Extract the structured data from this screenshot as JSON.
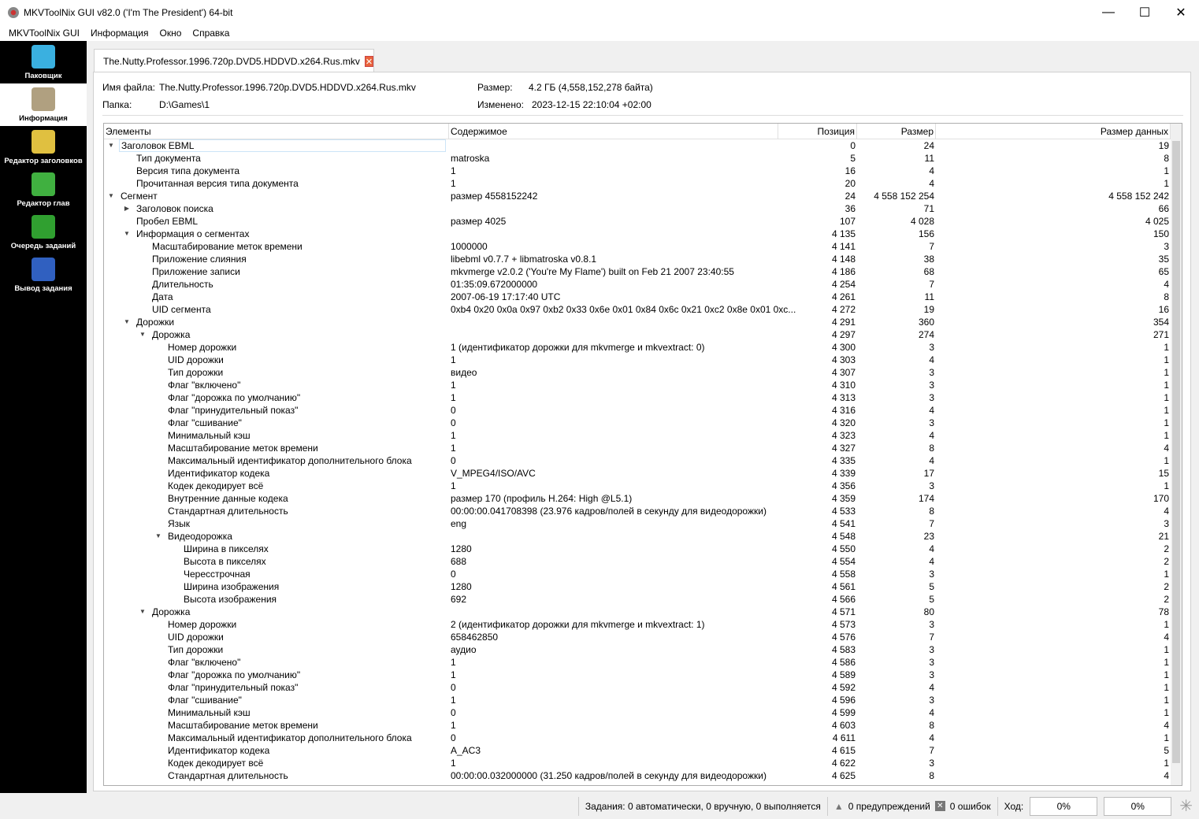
{
  "window": {
    "title": "MKVToolNix GUI v82.0 ('I'm The President') 64-bit",
    "minimize": "—",
    "maximize": "☐",
    "close": "✕"
  },
  "menu": [
    "MKVToolNix GUI",
    "Информация",
    "Окно",
    "Справка"
  ],
  "sidebar": [
    {
      "label": "Паковщик",
      "icon": "merge-icon",
      "color": "#3ab0e0"
    },
    {
      "label": "Информация",
      "icon": "magnifier-icon",
      "color": "#b0a080",
      "selected": true
    },
    {
      "label": "Редактор заголовков",
      "icon": "header-editor-icon",
      "color": "#e0c040"
    },
    {
      "label": "Редактор глав",
      "icon": "chapter-editor-icon",
      "color": "#40b040"
    },
    {
      "label": "Очередь заданий",
      "icon": "job-queue-icon",
      "color": "#30a030"
    },
    {
      "label": "Вывод задания",
      "icon": "job-output-icon",
      "color": "#3060c0"
    }
  ],
  "tab": {
    "label": "The.Nutty.Professor.1996.720p.DVD5.HDDVD.x264.Rus.mkv",
    "close": "✕"
  },
  "info": {
    "file_label": "Имя файла:",
    "file": "The.Nutty.Professor.1996.720p.DVD5.HDDVD.x264.Rus.mkv",
    "folder_label": "Папка:",
    "folder": "D:\\Games\\1",
    "size_label": "Размер:",
    "size": "4.2 ГБ (4,558,152,278 байта)",
    "modified_label": "Изменено:",
    "modified": "2023-12-15 22:10:04 +02:00"
  },
  "columns": [
    "Элементы",
    "Содержимое",
    "Позиция",
    "Размер",
    "Размер данных"
  ],
  "rows": [
    [
      0,
      "open",
      "Заголовок EBML",
      "",
      "0",
      "24",
      "19"
    ],
    [
      1,
      "",
      "Тип документа",
      "matroska",
      "5",
      "11",
      "8"
    ],
    [
      1,
      "",
      "Версия типа документа",
      "1",
      "16",
      "4",
      "1"
    ],
    [
      1,
      "",
      "Прочитанная версия типа документа",
      "1",
      "20",
      "4",
      "1"
    ],
    [
      0,
      "open",
      "Сегмент",
      "размер 4558152242",
      "24",
      "4 558 152 254",
      "4 558 152 242"
    ],
    [
      1,
      "closed",
      "Заголовок поиска",
      "",
      "36",
      "71",
      "66"
    ],
    [
      1,
      "",
      "Пробел EBML",
      "размер 4025",
      "107",
      "4 028",
      "4 025"
    ],
    [
      1,
      "open",
      "Информация о сегментах",
      "",
      "4 135",
      "156",
      "150"
    ],
    [
      2,
      "",
      "Масштабирование меток времени",
      "1000000",
      "4 141",
      "7",
      "3"
    ],
    [
      2,
      "",
      "Приложение слияния",
      "libebml v0.7.7 + libmatroska v0.8.1",
      "4 148",
      "38",
      "35"
    ],
    [
      2,
      "",
      "Приложение записи",
      "mkvmerge v2.0.2 ('You're My Flame') built on Feb 21 2007 23:40:55",
      "4 186",
      "68",
      "65"
    ],
    [
      2,
      "",
      "Длительность",
      "01:35:09.672000000",
      "4 254",
      "7",
      "4"
    ],
    [
      2,
      "",
      "Дата",
      "2007-06-19 17:17:40 UTC",
      "4 261",
      "11",
      "8"
    ],
    [
      2,
      "",
      "UID сегмента",
      "0xb4 0x20 0x0a 0x97 0xb2 0x33 0x6e 0x01 0x84 0x6c 0x21 0xc2 0x8e 0x01 0xc...",
      "4 272",
      "19",
      "16"
    ],
    [
      1,
      "open",
      "Дорожки",
      "",
      "4 291",
      "360",
      "354"
    ],
    [
      2,
      "open",
      "Дорожка",
      "",
      "4 297",
      "274",
      "271"
    ],
    [
      3,
      "",
      "Номер дорожки",
      "1 (идентификатор дорожки для mkvmerge и mkvextract: 0)",
      "4 300",
      "3",
      "1"
    ],
    [
      3,
      "",
      "UID дорожки",
      "1",
      "4 303",
      "4",
      "1"
    ],
    [
      3,
      "",
      "Тип дорожки",
      "видео",
      "4 307",
      "3",
      "1"
    ],
    [
      3,
      "",
      "Флаг \"включено\"",
      "1",
      "4 310",
      "3",
      "1"
    ],
    [
      3,
      "",
      "Флаг \"дорожка по умолчанию\"",
      "1",
      "4 313",
      "3",
      "1"
    ],
    [
      3,
      "",
      "Флаг \"принудительный показ\"",
      "0",
      "4 316",
      "4",
      "1"
    ],
    [
      3,
      "",
      "Флаг \"сшивание\"",
      "0",
      "4 320",
      "3",
      "1"
    ],
    [
      3,
      "",
      "Минимальный кэш",
      "1",
      "4 323",
      "4",
      "1"
    ],
    [
      3,
      "",
      "Масштабирование меток времени",
      "1",
      "4 327",
      "8",
      "4"
    ],
    [
      3,
      "",
      "Максимальный идентификатор дополнительного блока",
      "0",
      "4 335",
      "4",
      "1"
    ],
    [
      3,
      "",
      "Идентификатор кодека",
      "V_MPEG4/ISO/AVC",
      "4 339",
      "17",
      "15"
    ],
    [
      3,
      "",
      "Кодек декодирует всё",
      "1",
      "4 356",
      "3",
      "1"
    ],
    [
      3,
      "",
      "Внутренние данные кодека",
      "размер 170 (профиль H.264: High @L5.1)",
      "4 359",
      "174",
      "170"
    ],
    [
      3,
      "",
      "Стандартная длительность",
      "00:00:00.041708398 (23.976 кадров/полей в секунду для видеодорожки)",
      "4 533",
      "8",
      "4"
    ],
    [
      3,
      "",
      "Язык",
      "eng",
      "4 541",
      "7",
      "3"
    ],
    [
      3,
      "open",
      "Видеодорожка",
      "",
      "4 548",
      "23",
      "21"
    ],
    [
      4,
      "",
      "Ширина в пикселях",
      "1280",
      "4 550",
      "4",
      "2"
    ],
    [
      4,
      "",
      "Высота в пикселях",
      "688",
      "4 554",
      "4",
      "2"
    ],
    [
      4,
      "",
      "Чересстрочная",
      "0",
      "4 558",
      "3",
      "1"
    ],
    [
      4,
      "",
      "Ширина изображения",
      "1280",
      "4 561",
      "5",
      "2"
    ],
    [
      4,
      "",
      "Высота изображения",
      "692",
      "4 566",
      "5",
      "2"
    ],
    [
      2,
      "open",
      "Дорожка",
      "",
      "4 571",
      "80",
      "78"
    ],
    [
      3,
      "",
      "Номер дорожки",
      "2 (идентификатор дорожки для mkvmerge и mkvextract: 1)",
      "4 573",
      "3",
      "1"
    ],
    [
      3,
      "",
      "UID дорожки",
      "658462850",
      "4 576",
      "7",
      "4"
    ],
    [
      3,
      "",
      "Тип дорожки",
      "аудио",
      "4 583",
      "3",
      "1"
    ],
    [
      3,
      "",
      "Флаг \"включено\"",
      "1",
      "4 586",
      "3",
      "1"
    ],
    [
      3,
      "",
      "Флаг \"дорожка по умолчанию\"",
      "1",
      "4 589",
      "3",
      "1"
    ],
    [
      3,
      "",
      "Флаг \"принудительный показ\"",
      "0",
      "4 592",
      "4",
      "1"
    ],
    [
      3,
      "",
      "Флаг \"сшивание\"",
      "1",
      "4 596",
      "3",
      "1"
    ],
    [
      3,
      "",
      "Минимальный кэш",
      "0",
      "4 599",
      "4",
      "1"
    ],
    [
      3,
      "",
      "Масштабирование меток времени",
      "1",
      "4 603",
      "8",
      "4"
    ],
    [
      3,
      "",
      "Максимальный идентификатор дополнительного блока",
      "0",
      "4 611",
      "4",
      "1"
    ],
    [
      3,
      "",
      "Идентификатор кодека",
      "A_AC3",
      "4 615",
      "7",
      "5"
    ],
    [
      3,
      "",
      "Кодек декодирует всё",
      "1",
      "4 622",
      "3",
      "1"
    ],
    [
      3,
      "",
      "Стандартная длительность",
      "00:00:00.032000000 (31.250 кадров/полей в секунду для видеодорожки)",
      "4 625",
      "8",
      "4"
    ]
  ],
  "status": {
    "jobs": "Задания: 0 автоматически, 0 вручную, 0 выполняется",
    "warnings": "0 предупреждений",
    "errors": "0 ошибок",
    "progress_label": "Ход:",
    "progress_current": "0%",
    "progress_total": "0%"
  }
}
